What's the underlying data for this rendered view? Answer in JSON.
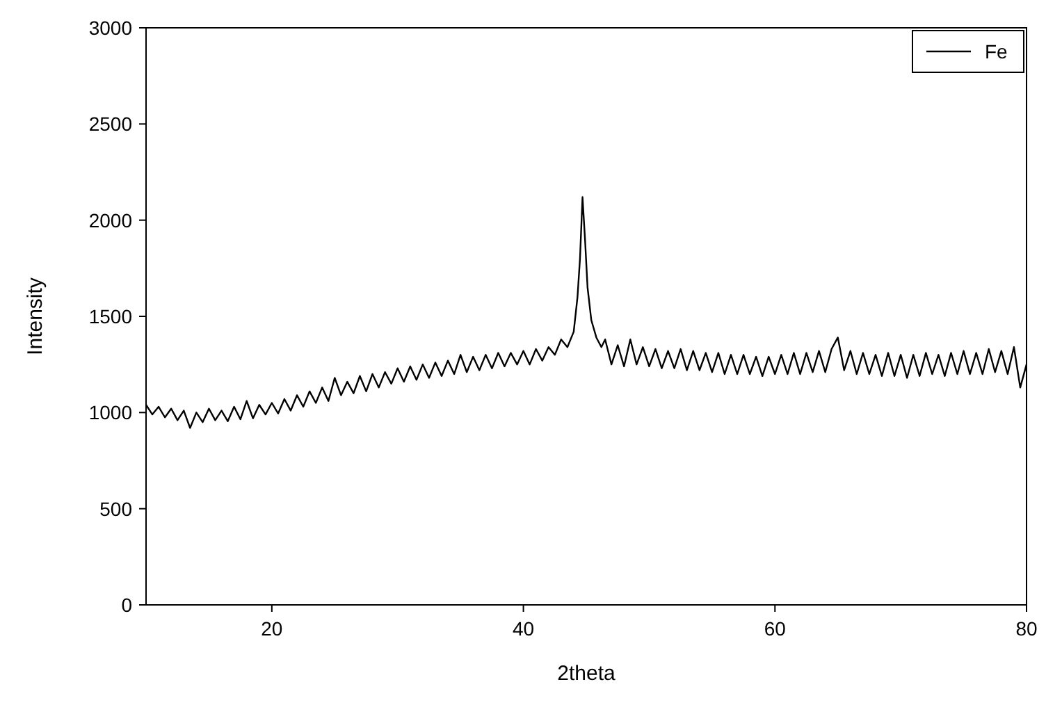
{
  "chart_data": {
    "type": "line",
    "xlabel": "2theta",
    "ylabel": "Intensity",
    "xlim": [
      10,
      80
    ],
    "xticks": [
      20,
      40,
      60,
      80
    ],
    "ylim": [
      0,
      3000
    ],
    "yticks": [
      0,
      500,
      1000,
      1500,
      2000,
      2500,
      3000
    ],
    "legend": "top right",
    "grid": false,
    "line_style": "solid",
    "marker": "none",
    "x": [
      10,
      10.5,
      11,
      11.5,
      12,
      12.5,
      13,
      13.5,
      14,
      14.5,
      15,
      15.5,
      16,
      16.5,
      17,
      17.5,
      18,
      18.5,
      19,
      19.5,
      20,
      20.5,
      21,
      21.5,
      22,
      22.5,
      23,
      23.5,
      24,
      24.5,
      25,
      25.5,
      26,
      26.5,
      27,
      27.5,
      28,
      28.5,
      29,
      29.5,
      30,
      30.5,
      31,
      31.5,
      32,
      32.5,
      33,
      33.5,
      34,
      34.5,
      35,
      35.5,
      36,
      36.5,
      37,
      37.5,
      38,
      38.5,
      39,
      39.5,
      40,
      40.5,
      41,
      41.5,
      42,
      42.5,
      43,
      43.5,
      44,
      44.3,
      44.5,
      44.7,
      44.9,
      45.1,
      45.4,
      45.8,
      46.2,
      46.5,
      47,
      47.5,
      48,
      48.5,
      49,
      49.5,
      50,
      50.5,
      51,
      51.5,
      52,
      52.5,
      53,
      53.5,
      54,
      54.5,
      55,
      55.5,
      56,
      56.5,
      57,
      57.5,
      58,
      58.5,
      59,
      59.5,
      60,
      60.5,
      61,
      61.5,
      62,
      62.5,
      63,
      63.5,
      64,
      64.5,
      65,
      65.5,
      66,
      66.5,
      67,
      67.5,
      68,
      68.5,
      69,
      69.5,
      70,
      70.5,
      71,
      71.5,
      72,
      72.5,
      73,
      73.5,
      74,
      74.5,
      75,
      75.5,
      76,
      76.5,
      77,
      77.5,
      78,
      78.5,
      79,
      79.5,
      80
    ],
    "series": [
      {
        "name": "Fe",
        "color": "#000000",
        "values": [
          1040,
          990,
          1030,
          975,
          1020,
          960,
          1010,
          920,
          1000,
          950,
          1020,
          960,
          1010,
          955,
          1030,
          965,
          1060,
          970,
          1040,
          990,
          1050,
          995,
          1070,
          1010,
          1090,
          1030,
          1110,
          1050,
          1130,
          1060,
          1180,
          1090,
          1160,
          1100,
          1190,
          1110,
          1200,
          1130,
          1210,
          1150,
          1230,
          1160,
          1240,
          1170,
          1250,
          1180,
          1260,
          1190,
          1270,
          1200,
          1300,
          1210,
          1290,
          1220,
          1300,
          1230,
          1310,
          1240,
          1310,
          1250,
          1320,
          1250,
          1330,
          1270,
          1340,
          1300,
          1380,
          1340,
          1420,
          1600,
          1800,
          2120,
          1900,
          1650,
          1480,
          1390,
          1340,
          1380,
          1250,
          1350,
          1240,
          1380,
          1250,
          1340,
          1240,
          1330,
          1230,
          1320,
          1230,
          1330,
          1220,
          1320,
          1220,
          1310,
          1210,
          1310,
          1200,
          1300,
          1200,
          1300,
          1200,
          1290,
          1190,
          1290,
          1200,
          1300,
          1200,
          1310,
          1200,
          1310,
          1210,
          1320,
          1210,
          1330,
          1390,
          1220,
          1320,
          1200,
          1310,
          1200,
          1300,
          1190,
          1310,
          1190,
          1300,
          1180,
          1300,
          1190,
          1310,
          1200,
          1300,
          1190,
          1310,
          1200,
          1320,
          1200,
          1310,
          1200,
          1330,
          1210,
          1320,
          1200,
          1340,
          1130,
          1250
        ]
      }
    ]
  }
}
